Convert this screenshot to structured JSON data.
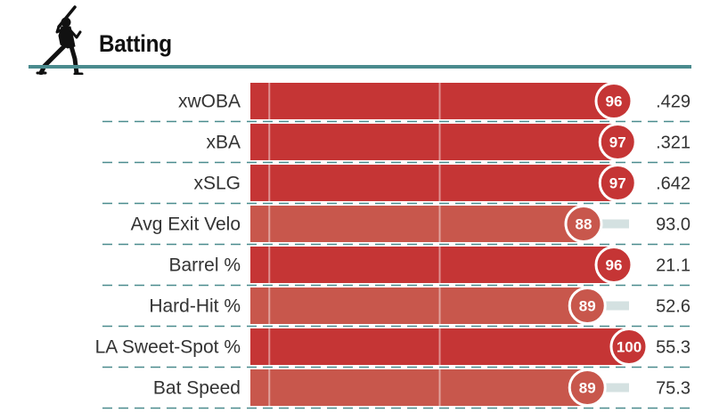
{
  "section": {
    "title": "Batting",
    "icon": "baseball-batter-icon"
  },
  "colors": {
    "strong": "#c53535",
    "medium": "#c8574c",
    "track": "#d4e1e1",
    "rule": "#4a8b8e",
    "dash": "#4a8b8e"
  },
  "chart_data": {
    "type": "bar",
    "orientation": "horizontal",
    "xlim": [
      0,
      100
    ],
    "categories": [
      "xwOBA",
      "xBA",
      "xSLG",
      "Avg Exit Velo",
      "Barrel %",
      "Hard-Hit %",
      "LA Sweet-Spot %",
      "Bat Speed"
    ],
    "percentiles": [
      96,
      97,
      97,
      88,
      96,
      89,
      100,
      89
    ],
    "values": [
      ".429",
      ".321",
      ".642",
      "93.0",
      "21.1",
      "52.6",
      "55.3",
      "75.3"
    ],
    "grid": true
  }
}
